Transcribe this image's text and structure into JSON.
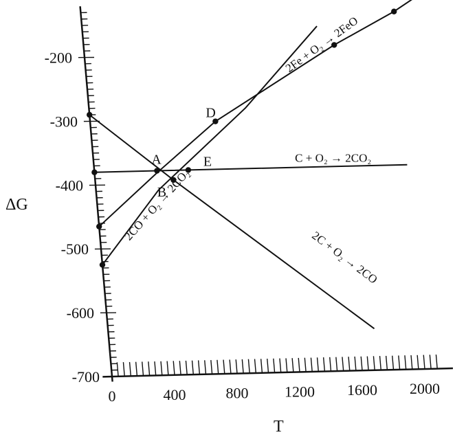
{
  "chart_data": {
    "type": "line",
    "xlabel": "T",
    "ylabel": "ΔG",
    "xlim": [
      0,
      2000
    ],
    "ylim": [
      -700,
      -100
    ],
    "x_ticks": [
      0,
      400,
      800,
      1200,
      1600,
      2000
    ],
    "y_ticks": [
      -200,
      -300,
      -400,
      -500,
      -600,
      -700
    ],
    "grid": false,
    "series": [
      {
        "name": "C + O₂ → 2CO₂",
        "points": [
          [
            0,
            -380
          ],
          [
            200,
            -380
          ],
          [
            400,
            -380
          ],
          [
            1600,
            -380
          ],
          [
            2000,
            -380
          ]
        ],
        "marked_points": [
          [
            0,
            -380
          ],
          [
            400,
            -380
          ],
          [
            600,
            -380
          ]
        ]
      },
      {
        "name": "2C + O₂ → 2CO",
        "points": [
          [
            0,
            -290
          ],
          [
            500,
            -395
          ],
          [
            1700,
            -635
          ]
        ],
        "marked_points": [
          [
            0,
            -290
          ],
          [
            500,
            -395
          ]
        ]
      },
      {
        "name": "2CO + O₂ → 2CO₂",
        "points": [
          [
            0,
            -525
          ],
          [
            400,
            -410
          ],
          [
            1000,
            -285
          ],
          [
            1500,
            -160
          ]
        ],
        "marked_points": [
          [
            0,
            -525
          ]
        ]
      },
      {
        "name": "2Fe + O₂ → 2FeO",
        "points": [
          [
            0,
            -465
          ],
          [
            400,
            -383
          ],
          [
            800,
            -305
          ],
          [
            1600,
            -190
          ],
          [
            2000,
            -140
          ],
          [
            2300,
            -95
          ]
        ],
        "marked_points": [
          [
            0,
            -465
          ],
          [
            800,
            -305
          ],
          [
            1600,
            -190
          ],
          [
            2000,
            -140
          ]
        ]
      }
    ],
    "annotations": [
      {
        "text": "A",
        "x": 400,
        "y": -380
      },
      {
        "text": "B",
        "x": 440,
        "y": -395
      },
      {
        "text": "D",
        "x": 800,
        "y": -305
      },
      {
        "text": "E",
        "x": 600,
        "y": -380
      }
    ]
  }
}
